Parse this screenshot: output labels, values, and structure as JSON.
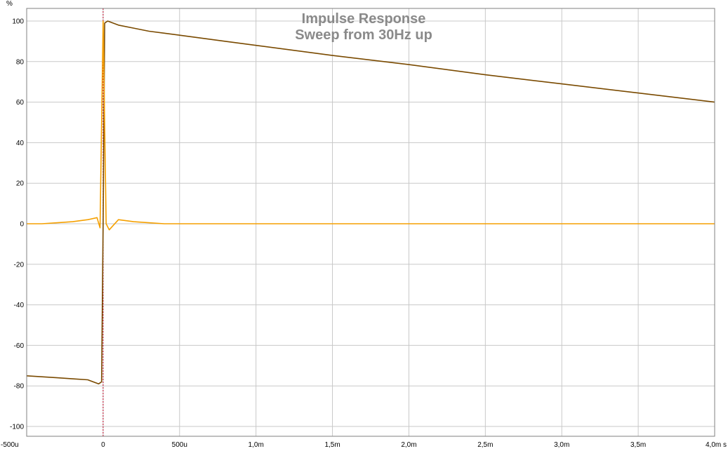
{
  "chart_data": {
    "type": "line",
    "title": "Impulse Response",
    "subtitle": "Sweep from 30Hz up",
    "ylabel": "%",
    "xlabel": "s",
    "xlim": [
      -0.0005,
      0.004
    ],
    "ylim": [
      -100,
      100
    ],
    "grid": true,
    "legend": "none",
    "x_ticks": [
      {
        "value": -0.0005,
        "label": "-500u"
      },
      {
        "value": 0,
        "label": "0"
      },
      {
        "value": 0.0005,
        "label": "500u"
      },
      {
        "value": 0.001,
        "label": "1,0m"
      },
      {
        "value": 0.0015,
        "label": "1,5m"
      },
      {
        "value": 0.002,
        "label": "2,0m"
      },
      {
        "value": 0.0025,
        "label": "2,5m"
      },
      {
        "value": 0.003,
        "label": "3,0m"
      },
      {
        "value": 0.0035,
        "label": "3,5m"
      },
      {
        "value": 0.004,
        "label": "4,0m s"
      }
    ],
    "y_ticks": [
      {
        "value": 100,
        "label": "100"
      },
      {
        "value": 80,
        "label": "80"
      },
      {
        "value": 60,
        "label": "60"
      },
      {
        "value": 40,
        "label": "40"
      },
      {
        "value": 20,
        "label": "20"
      },
      {
        "value": 0,
        "label": "0"
      },
      {
        "value": -20,
        "label": "-20"
      },
      {
        "value": -40,
        "label": "-40"
      },
      {
        "value": -60,
        "label": "-60"
      },
      {
        "value": -80,
        "label": "-80"
      },
      {
        "value": -100,
        "label": "-100"
      }
    ],
    "marker_x": 0,
    "series": [
      {
        "color": "#7a4a00",
        "x": [
          -0.0005,
          -0.0004,
          -0.0003,
          -0.0002,
          -0.0001,
          -3e-05,
          -1e-05,
          0,
          1e-05,
          3e-05,
          0.0001,
          0.0002,
          0.0003,
          0.0004,
          0.0005,
          0.0008,
          0.001,
          0.0015,
          0.002,
          0.0025,
          0.003,
          0.0035,
          0.004
        ],
        "y": [
          -75,
          -75.5,
          -76,
          -76.5,
          -77,
          -79,
          -78,
          0,
          99,
          100,
          98,
          96.5,
          95,
          94,
          93,
          90,
          88,
          83,
          78.5,
          73.5,
          69,
          64.5,
          60
        ]
      },
      {
        "color": "#f5a000",
        "x": [
          -0.0005,
          -0.0004,
          -0.0003,
          -0.0002,
          -0.0001,
          -4e-05,
          -2e-05,
          0,
          2e-05,
          4e-05,
          0.0001,
          0.0002,
          0.0003,
          0.0004,
          0.0006,
          0.001,
          0.002,
          0.003,
          0.004
        ],
        "y": [
          0,
          0,
          0.5,
          1,
          2,
          3,
          -2,
          100,
          0,
          -3,
          2,
          1,
          0.5,
          0,
          0,
          0,
          0,
          0,
          0
        ]
      }
    ]
  }
}
